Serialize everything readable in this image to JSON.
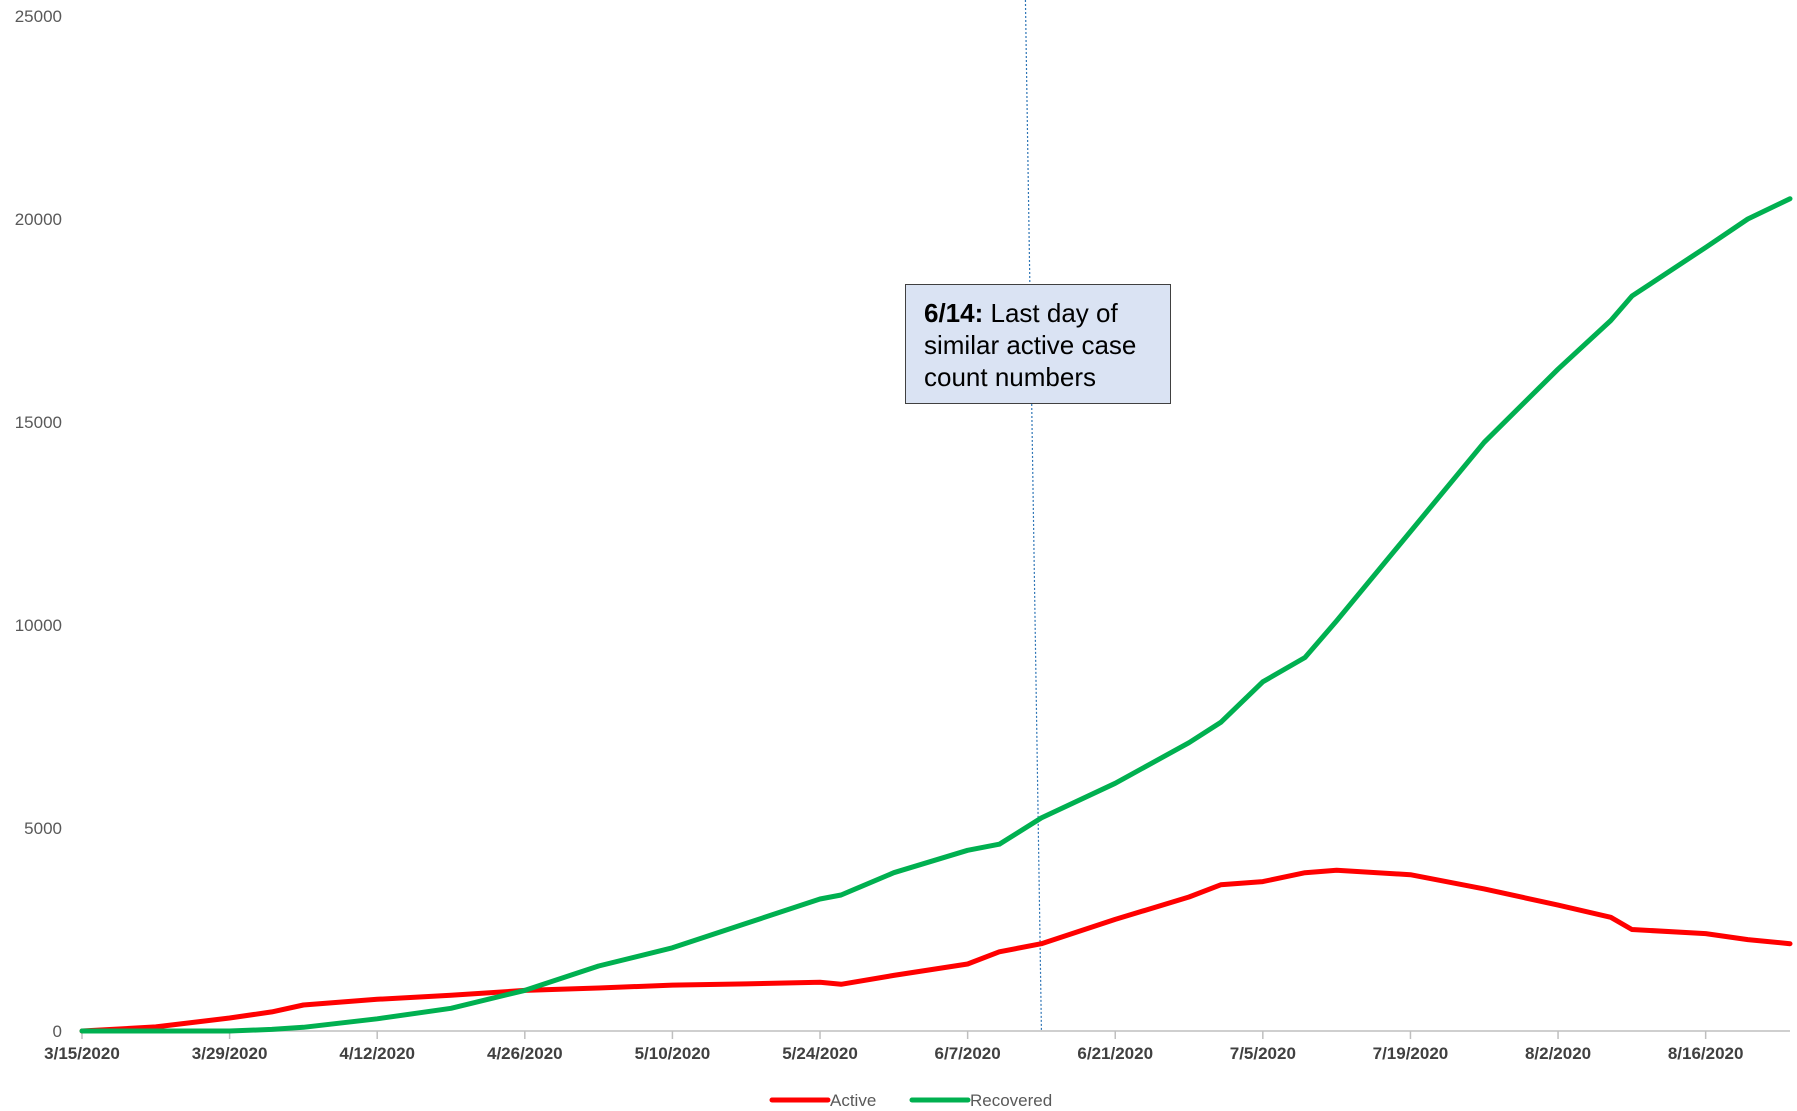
{
  "chart_data": {
    "type": "line",
    "title": "",
    "xlabel": "",
    "ylabel": "",
    "ylim": [
      0,
      25000
    ],
    "yticks": [
      0,
      5000,
      10000,
      15000,
      20000,
      25000
    ],
    "x_start": "3/15/2020",
    "x_end": "8/24/2020",
    "xtick_labels": [
      "3/15/2020",
      "3/29/2020",
      "4/12/2020",
      "4/26/2020",
      "5/10/2020",
      "5/24/2020",
      "6/7/2020",
      "6/21/2020",
      "7/5/2020",
      "7/19/2020",
      "8/2/2020",
      "8/16/2020"
    ],
    "grid": false,
    "legend_position": "bottom",
    "x": [
      "3/15/2020",
      "3/22/2020",
      "3/29/2020",
      "4/2/2020",
      "4/5/2020",
      "4/12/2020",
      "4/19/2020",
      "4/26/2020",
      "5/3/2020",
      "5/10/2020",
      "5/17/2020",
      "5/24/2020",
      "5/26/2020",
      "5/31/2020",
      "6/7/2020",
      "6/10/2020",
      "6/14/2020",
      "6/21/2020",
      "6/28/2020",
      "7/1/2020",
      "7/5/2020",
      "7/9/2020",
      "7/12/2020",
      "7/19/2020",
      "7/26/2020",
      "8/2/2020",
      "8/7/2020",
      "8/9/2020",
      "8/16/2020",
      "8/20/2020",
      "8/24/2020"
    ],
    "series": [
      {
        "name": "Active",
        "color": "#ff0000",
        "values": [
          0,
          100,
          320,
          470,
          640,
          780,
          880,
          1000,
          1060,
          1130,
          1160,
          1200,
          1150,
          1370,
          1650,
          1950,
          2150,
          2750,
          3300,
          3600,
          3680,
          3900,
          3960,
          3850,
          3500,
          3100,
          2800,
          2500,
          2400,
          2250,
          2150
        ]
      },
      {
        "name": "Recovered",
        "color": "#00b050",
        "values": [
          0,
          0,
          0,
          40,
          90,
          300,
          560,
          1000,
          1600,
          2050,
          2650,
          3250,
          3350,
          3900,
          4450,
          4600,
          5250,
          6100,
          7100,
          7600,
          8600,
          9200,
          10100,
          12300,
          14500,
          16300,
          17500,
          18100,
          19300,
          20000,
          20500
        ]
      }
    ],
    "annotation": {
      "date": "6/14/2020",
      "bold_text": "6/14:",
      "text": " Last day of similar active case count numbers"
    }
  }
}
